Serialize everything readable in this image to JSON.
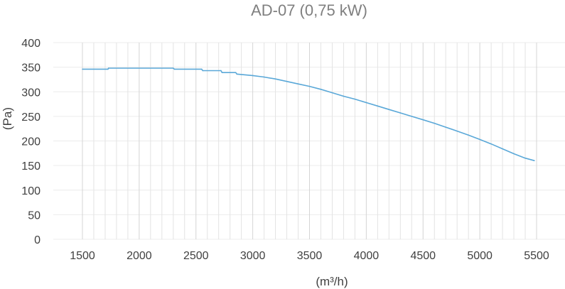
{
  "chart_data": {
    "type": "line",
    "title": "AD-07 (0,75 kW)",
    "xlabel": "(m³/h)",
    "ylabel": "(Pa)",
    "xlim": [
      1500,
      5500
    ],
    "ylim": [
      0,
      400
    ],
    "x_ticks": [
      1500,
      2000,
      2500,
      3000,
      3500,
      4000,
      4500,
      5000,
      5500
    ],
    "y_ticks": [
      0,
      50,
      100,
      150,
      200,
      250,
      300,
      350,
      400
    ],
    "grid": true,
    "series": [
      {
        "color": "#5aa8d8",
        "x": [
          1500,
          1725,
          1730,
          2300,
          2310,
          2550,
          2560,
          2720,
          2730,
          2850,
          2860,
          3000,
          3100,
          3200,
          3300,
          3400,
          3500,
          3600,
          3700,
          3800,
          3900,
          4000,
          4100,
          4200,
          4300,
          4400,
          4500,
          4600,
          4700,
          4800,
          4900,
          5000,
          5100,
          5200,
          5300,
          5400,
          5480
        ],
        "y": [
          346,
          346,
          348,
          348,
          346,
          346,
          343,
          343,
          339,
          339,
          336,
          333,
          330,
          326,
          321,
          316,
          311,
          305,
          298,
          291,
          285,
          278,
          271,
          264,
          257,
          250,
          243,
          236,
          228,
          220,
          212,
          203,
          194,
          184,
          174,
          165,
          160
        ]
      }
    ]
  }
}
